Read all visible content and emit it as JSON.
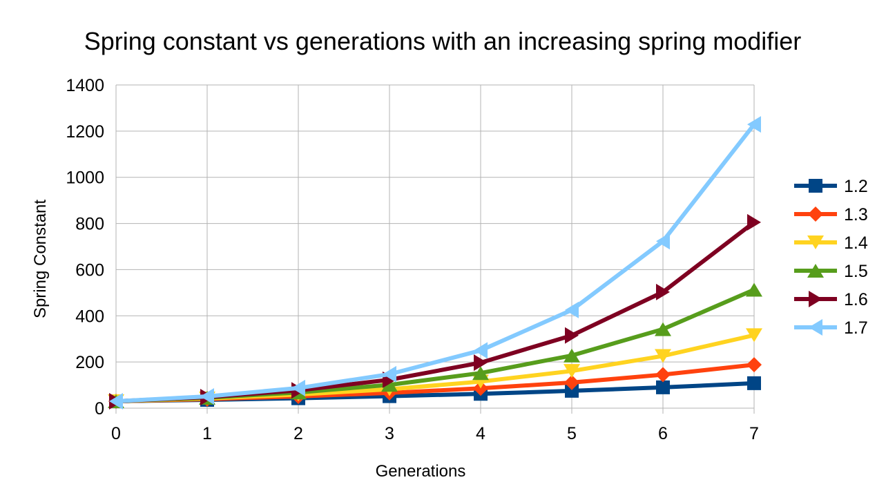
{
  "chart_data": {
    "type": "line",
    "title": "Spring constant vs generations with an increasing spring modifier",
    "xlabel": "Generations",
    "ylabel": "Spring Constant",
    "x": [
      0,
      1,
      2,
      3,
      4,
      5,
      6,
      7
    ],
    "xlim": [
      0,
      7
    ],
    "ylim": [
      0,
      1400
    ],
    "yticks": [
      0,
      200,
      400,
      600,
      800,
      1000,
      1200,
      1400
    ],
    "grid": true,
    "legend_position": "right",
    "series": [
      {
        "name": "1.2",
        "color": "#004586",
        "marker": "square",
        "values": [
          30,
          36,
          43,
          52,
          62,
          75,
          90,
          108
        ]
      },
      {
        "name": "1.3",
        "color": "#ff420e",
        "marker": "diamond",
        "values": [
          30,
          39,
          51,
          66,
          86,
          111,
          145,
          188
        ]
      },
      {
        "name": "1.4",
        "color": "#ffd320",
        "marker": "triangle-down",
        "values": [
          30,
          42,
          59,
          82,
          115,
          161,
          226,
          316
        ]
      },
      {
        "name": "1.5",
        "color": "#579d1c",
        "marker": "triangle-up",
        "values": [
          30,
          45,
          68,
          101,
          152,
          228,
          342,
          513
        ]
      },
      {
        "name": "1.6",
        "color": "#7e0021",
        "marker": "triangle-right",
        "values": [
          30,
          48,
          77,
          123,
          197,
          315,
          503,
          805
        ]
      },
      {
        "name": "1.7",
        "color": "#83caff",
        "marker": "triangle-left",
        "values": [
          30,
          51,
          87,
          147,
          250,
          425,
          723,
          1229
        ]
      }
    ]
  }
}
